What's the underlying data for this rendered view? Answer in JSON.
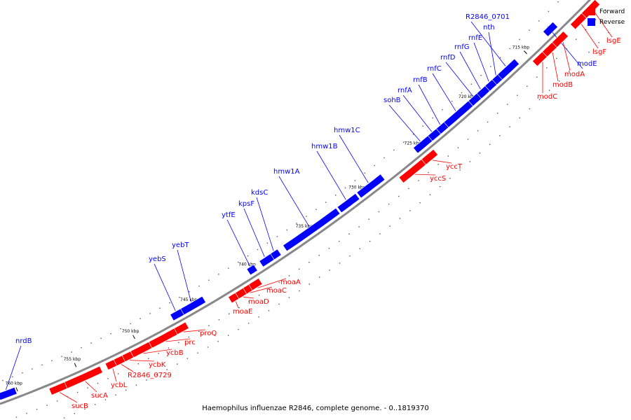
{
  "legend": {
    "forward_label": "Forward",
    "reverse_label": "Reverse",
    "forward_color": "#ff0000",
    "reverse_color": "#0000ff"
  },
  "caption": "Haemophilus influenzae R2846, complete genome. - 0..1819370",
  "kbp_ticks": [
    "760 kbp",
    "755 kbp",
    "750 kbp",
    "745 kbp",
    "740 kbp",
    "735 kbp",
    "730 kbp",
    "725 kbp",
    "720 kbp",
    "715 kbp"
  ],
  "reverse_genes": [
    {
      "name": "nrdB"
    },
    {
      "name": "yebS"
    },
    {
      "name": "yebT"
    },
    {
      "name": "ytfE"
    },
    {
      "name": "kpsF"
    },
    {
      "name": "kdsC"
    },
    {
      "name": "hmw1A"
    },
    {
      "name": "hmw1B"
    },
    {
      "name": "hmw1C"
    },
    {
      "name": "sohB"
    },
    {
      "name": "rnfA"
    },
    {
      "name": "rnfB"
    },
    {
      "name": "rnfC"
    },
    {
      "name": "rnfD"
    },
    {
      "name": "rnfG"
    },
    {
      "name": "rnfE"
    },
    {
      "name": "nth"
    },
    {
      "name": "R2846_0701"
    },
    {
      "name": "modE"
    }
  ],
  "forward_genes": [
    {
      "name": "sucB"
    },
    {
      "name": "sucA"
    },
    {
      "name": "ycbL"
    },
    {
      "name": "R2846_0729"
    },
    {
      "name": "ycbK"
    },
    {
      "name": "ycbB"
    },
    {
      "name": "prc"
    },
    {
      "name": "proQ"
    },
    {
      "name": "moaE"
    },
    {
      "name": "moaD"
    },
    {
      "name": "moaC"
    },
    {
      "name": "moaA"
    },
    {
      "name": "yccS"
    },
    {
      "name": "yccT"
    },
    {
      "name": "modC"
    },
    {
      "name": "modB"
    },
    {
      "name": "modA"
    },
    {
      "name": "lsgF"
    },
    {
      "name": "lsgE"
    }
  ]
}
